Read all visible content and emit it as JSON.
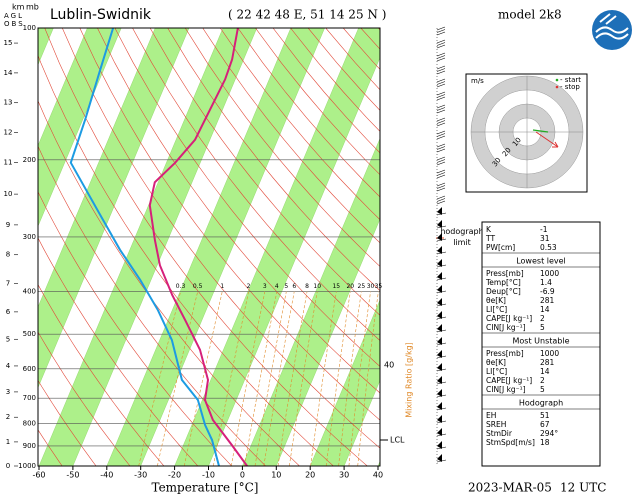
{
  "header": {
    "station": "Lublin-Swidnik",
    "coords": "( 22 42 48 E, 51 14 25 N )",
    "model": "model 2k8",
    "date": "2023-MAR-05",
    "time": "12 UTC",
    "km": "km",
    "mb": "mb",
    "agl": "AGL",
    "obs": "OBS"
  },
  "chart_data": {
    "type": "skewt",
    "xlabel": "Temperature [°C]",
    "xlim": [
      -60,
      40
    ],
    "xticks": [
      -60,
      -50,
      -40,
      -30,
      -20,
      -10,
      0,
      10,
      20,
      30,
      40
    ],
    "ylim": [
      1000,
      100
    ],
    "yticks": [
      100,
      200,
      300,
      400,
      500,
      600,
      700,
      800,
      900,
      1000
    ],
    "log_y": true,
    "km_ticks": [
      0,
      1,
      2,
      3,
      4,
      5,
      6,
      7,
      8,
      9,
      10,
      11,
      12,
      13,
      14,
      15
    ],
    "band_color": "#adf08a",
    "series": [
      {
        "color": "#d6207a",
        "p": [
          1000,
          896,
          785,
          707,
          636,
          543,
          464,
          407,
          348,
          305,
          254,
          225,
          203,
          180,
          154,
          131,
          118,
          100
        ],
        "t": [
          1.4,
          -5.7,
          -14.4,
          -19.2,
          -20.8,
          -26.9,
          -35,
          -41.9,
          -49.2,
          -53.8,
          -59.6,
          -61,
          -57.4,
          -54.4,
          -53.7,
          -53,
          -53.4,
          -55.6
        ]
      },
      {
        "color": "#1d9be2",
        "p": [
          1000,
          872,
          806,
          707,
          636,
          516,
          441,
          376,
          321,
          267,
          203,
          162,
          125,
          100
        ],
        "t": [
          -6.9,
          -12.2,
          -16.1,
          -21.3,
          -28.5,
          -36.4,
          -44.2,
          -53.2,
          -62.9,
          -73.1,
          -88.2,
          -89.3,
          -91,
          -92.4
        ]
      }
    ],
    "mixing_ratio": [
      0.3,
      0.5,
      1,
      2,
      3,
      4,
      5,
      6,
      8,
      10,
      15,
      20,
      25,
      30,
      35
    ],
    "mixing_ratio_label": "Mixing Ratio [g/kg]",
    "mixing_ratio_edge": 40,
    "lcl": "LCL",
    "hodograph_limit": "hodograph limit"
  },
  "hodograph": {
    "unit": "m/s",
    "start": "- start",
    "stop": "- stop",
    "rings": [
      10,
      20,
      30
    ]
  },
  "indices": {
    "rows": [
      [
        "K",
        -1
      ],
      [
        "TT",
        31
      ],
      [
        "PW[cm]",
        0.53
      ]
    ],
    "sections": [
      {
        "title": "Lowest level",
        "rows": [
          [
            "Press[mb]",
            1000
          ],
          [
            "Temp[°C]",
            1.4
          ],
          [
            "Deup[°C]",
            -6.9
          ],
          [
            "θe[K]",
            281
          ],
          [
            "LI[°C]",
            14
          ],
          [
            "CAPE[J kg⁻¹]",
            2
          ],
          [
            "CIN[J kg⁻¹]",
            5
          ]
        ]
      },
      {
        "title": "Most Unstable",
        "rows": [
          [
            "Press[mb]",
            1000
          ],
          [
            "θe[K]",
            281
          ],
          [
            "LI[°C]",
            14
          ],
          [
            "CAPE[J kg⁻¹]",
            2
          ],
          [
            "CIN[J kg⁻¹]",
            5
          ]
        ]
      },
      {
        "title": "Hodograph",
        "rows": [
          [
            "EH",
            51
          ],
          [
            "SREH",
            67
          ],
          [
            "StmDir",
            "294°"
          ],
          [
            "StmSpd[m/s]",
            18
          ]
        ]
      }
    ]
  }
}
